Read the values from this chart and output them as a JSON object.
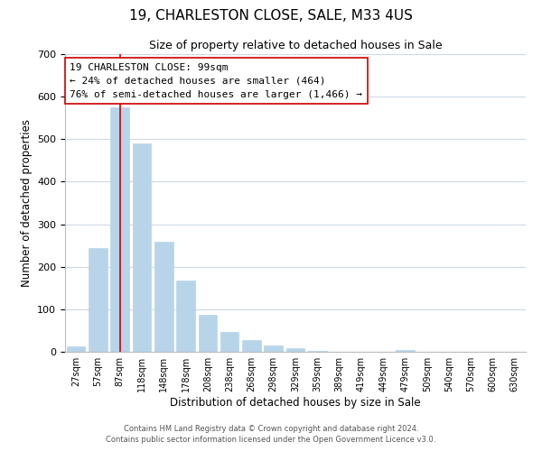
{
  "title": "19, CHARLESTON CLOSE, SALE, M33 4US",
  "subtitle": "Size of property relative to detached houses in Sale",
  "xlabel": "Distribution of detached houses by size in Sale",
  "ylabel": "Number of detached properties",
  "bar_labels": [
    "27sqm",
    "57sqm",
    "87sqm",
    "118sqm",
    "148sqm",
    "178sqm",
    "208sqm",
    "238sqm",
    "268sqm",
    "298sqm",
    "329sqm",
    "359sqm",
    "389sqm",
    "419sqm",
    "449sqm",
    "479sqm",
    "509sqm",
    "540sqm",
    "570sqm",
    "600sqm",
    "630sqm"
  ],
  "bar_values": [
    12,
    243,
    575,
    490,
    258,
    168,
    88,
    46,
    27,
    14,
    8,
    2,
    0,
    0,
    0,
    4,
    0,
    0,
    0,
    0,
    0
  ],
  "bar_color": "#b8d4e8",
  "bar_edge_color": "#b8d4e8",
  "vline_x_idx": 2,
  "vline_color": "#cc0000",
  "ylim": [
    0,
    700
  ],
  "yticks": [
    0,
    100,
    200,
    300,
    400,
    500,
    600,
    700
  ],
  "annotation_line1": "19 CHARLESTON CLOSE: 99sqm",
  "annotation_line2": "← 24% of detached houses are smaller (464)",
  "annotation_line3": "76% of semi-detached houses are larger (1,466) →",
  "annotation_box_color": "#ffffff",
  "annotation_box_edge": "#cc0000",
  "footer1": "Contains HM Land Registry data © Crown copyright and database right 2024.",
  "footer2": "Contains public sector information licensed under the Open Government Licence v3.0.",
  "background_color": "#ffffff",
  "grid_color": "#ccd9e5",
  "title_fontsize": 11,
  "subtitle_fontsize": 9,
  "bar_width": 0.85
}
